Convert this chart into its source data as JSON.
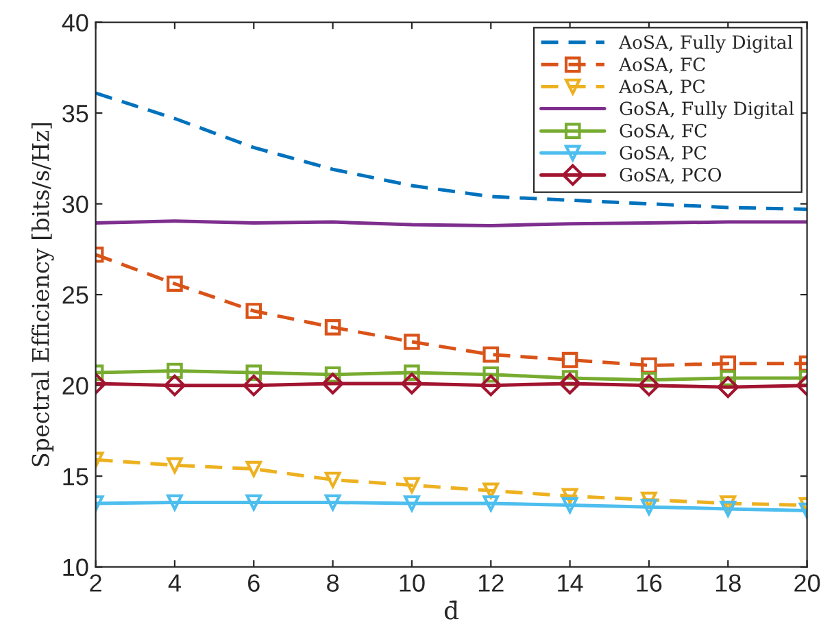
{
  "chart_data": {
    "type": "line",
    "xlabel": "d̄",
    "ylabel": "Spectral Efficiency [bits/s/Hz]",
    "x": [
      2,
      4,
      6,
      8,
      10,
      12,
      14,
      16,
      18,
      20
    ],
    "xlim": [
      2,
      20
    ],
    "xticks": [
      2,
      4,
      6,
      8,
      10,
      12,
      14,
      16,
      18,
      20
    ],
    "ylim": [
      10,
      40
    ],
    "yticks": [
      10,
      15,
      20,
      25,
      30,
      35,
      40
    ],
    "grid": false,
    "legend": "top right",
    "series": [
      {
        "name": "AoSA, Fully Digital",
        "color": "#0072bd",
        "line_style": "dashed",
        "marker": "none",
        "values": [
          36.1,
          34.7,
          33.1,
          31.9,
          31.0,
          30.4,
          30.2,
          30.0,
          29.8,
          29.7
        ]
      },
      {
        "name": "AoSA, FC",
        "color": "#d95319",
        "line_style": "dashed",
        "marker": "square",
        "values": [
          27.2,
          25.6,
          24.1,
          23.2,
          22.4,
          21.7,
          21.4,
          21.1,
          21.2,
          21.2
        ]
      },
      {
        "name": "AoSA, PC",
        "color": "#edb120",
        "line_style": "dashed",
        "marker": "triangle",
        "values": [
          15.9,
          15.6,
          15.4,
          14.8,
          14.5,
          14.2,
          13.9,
          13.7,
          13.5,
          13.4
        ]
      },
      {
        "name": "GoSA, Fully Digital",
        "color": "#7e2f8e",
        "line_style": "solid",
        "marker": "none",
        "values": [
          28.95,
          29.05,
          28.95,
          29.0,
          28.85,
          28.8,
          28.9,
          28.95,
          29.0,
          29.0
        ]
      },
      {
        "name": "GoSA, FC",
        "color": "#77ac30",
        "line_style": "solid",
        "marker": "square",
        "values": [
          20.7,
          20.8,
          20.7,
          20.6,
          20.7,
          20.6,
          20.4,
          20.3,
          20.4,
          20.4
        ]
      },
      {
        "name": "GoSA, PC",
        "color": "#4dbeee",
        "line_style": "solid",
        "marker": "triangle",
        "values": [
          13.5,
          13.55,
          13.55,
          13.55,
          13.5,
          13.5,
          13.4,
          13.3,
          13.2,
          13.1
        ]
      },
      {
        "name": "GoSA, PCO",
        "color": "#a2142f",
        "line_style": "solid",
        "marker": "diamond",
        "values": [
          20.1,
          20.0,
          20.0,
          20.1,
          20.1,
          20.0,
          20.1,
          20.0,
          19.9,
          20.0
        ]
      }
    ]
  }
}
